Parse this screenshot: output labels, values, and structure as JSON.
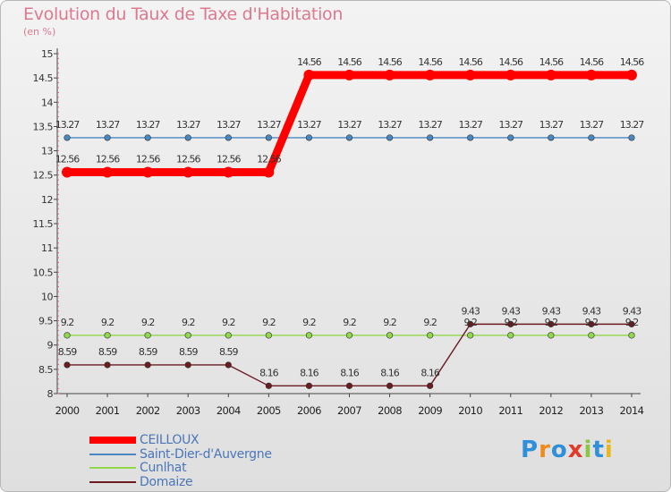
{
  "chart_data": {
    "type": "line",
    "title": "Evolution du Taux de Taxe d'Habitation",
    "ylabel": "(en %)",
    "xlabel": "",
    "categories": [
      "2000",
      "2001",
      "2002",
      "2003",
      "2004",
      "2005",
      "2006",
      "2007",
      "2008",
      "2009",
      "2010",
      "2011",
      "2012",
      "2013",
      "2014"
    ],
    "yticks": [
      "8",
      "8.5",
      "9",
      "9.5",
      "10",
      "10.5",
      "11",
      "11.5",
      "12",
      "12.5",
      "13",
      "13.5",
      "14",
      "14.5",
      "15"
    ],
    "ylim": [
      8,
      15
    ],
    "series": [
      {
        "name": "CEILLOUX",
        "color": "#ff0000",
        "values": [
          12.56,
          12.56,
          12.56,
          12.56,
          12.56,
          12.56,
          14.56,
          14.56,
          14.56,
          14.56,
          14.56,
          14.56,
          14.56,
          14.56,
          14.56
        ],
        "labels": [
          "12.56",
          "12.56",
          "12.56",
          "12.56",
          "12.56",
          "12.56",
          "14.56",
          "14.56",
          "14.56",
          "14.56",
          "14.56",
          "14.56",
          "14.56",
          "14.56",
          "14.56"
        ]
      },
      {
        "name": "Saint-Dier-d'Auvergne",
        "color": "#4a86c0",
        "values": [
          13.27,
          13.27,
          13.27,
          13.27,
          13.27,
          13.27,
          13.27,
          13.27,
          13.27,
          13.27,
          13.27,
          13.27,
          13.27,
          13.27,
          13.27
        ],
        "labels": [
          "13.27",
          "13.27",
          "13.27",
          "13.27",
          "13.27",
          "13.27",
          "13.27",
          "13.27",
          "13.27",
          "13.27",
          "13.27",
          "13.27",
          "13.27",
          "13.27",
          "13.27"
        ]
      },
      {
        "name": "Cunlhat",
        "color": "#8ed84a",
        "values": [
          9.2,
          9.2,
          9.2,
          9.2,
          9.2,
          9.2,
          9.2,
          9.2,
          9.2,
          9.2,
          9.2,
          9.2,
          9.2,
          9.2,
          9.2
        ],
        "labels": [
          "9.2",
          "9.2",
          "9.2",
          "9.2",
          "9.2",
          "9.2",
          "9.2",
          "9.2",
          "9.2",
          "9.2",
          "9.2",
          "9.2",
          "9.2",
          "9.2",
          "9.2"
        ]
      },
      {
        "name": "Domaize",
        "color": "#6b1c22",
        "values": [
          8.59,
          8.59,
          8.59,
          8.59,
          8.59,
          8.16,
          8.16,
          8.16,
          8.16,
          8.16,
          9.43,
          9.43,
          9.43,
          9.43,
          9.43
        ],
        "labels": [
          "8.59",
          "8.59",
          "8.59",
          "8.59",
          "8.59",
          "8.16",
          "8.16",
          "8.16",
          "8.16",
          "8.16",
          "9.43",
          "9.43",
          "9.43",
          "9.43",
          "9.43"
        ]
      }
    ],
    "legend_position": "bottom-left",
    "grid": false
  },
  "logo": {
    "letters": [
      "P",
      "r",
      "o",
      "x",
      "i",
      "t",
      "i"
    ],
    "colors": [
      "#2f8fd8",
      "#f08a1c",
      "#2f8fd8",
      "#e03a2a",
      "#8cc63f",
      "#2f8fd8",
      "#e6b820"
    ]
  }
}
